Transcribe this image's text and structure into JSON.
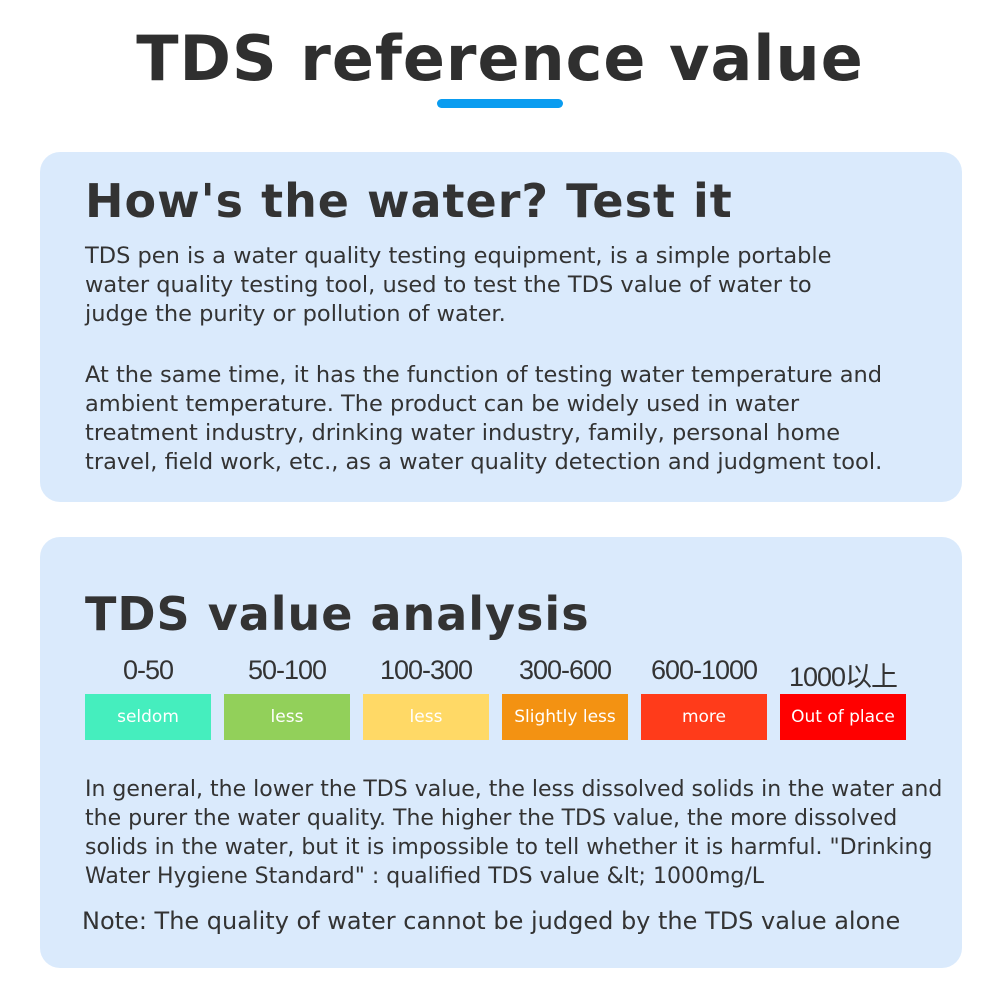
{
  "title": "TDS reference value",
  "accent": "#0a9cf0",
  "card1": {
    "heading": "How's the water? Test it",
    "p1": "TDS pen is a water quality testing equipment, is a simple portable\nwater quality testing tool, used to test the TDS value of water to\njudge the purity or pollution of water.",
    "p2": "At the same time, it has the function of testing water temperature and\nambient temperature. The product can be widely used in water\ntreatment industry, drinking water industry, family, personal home\ntravel, field work, etc., as a water quality detection and judgment tool."
  },
  "card2": {
    "heading": "TDS value analysis",
    "scale": [
      {
        "range": "0-50",
        "label": "seldom",
        "color": "#45eebe"
      },
      {
        "range": "50-100",
        "label": "less",
        "color": "#92d05a"
      },
      {
        "range": "100-300",
        "label": "less",
        "color": "#ffd966"
      },
      {
        "range": "300-600",
        "label": "Slightly less",
        "color": "#f39212"
      },
      {
        "range": "600-1000",
        "label": "more",
        "color": "#ff3b1a"
      },
      {
        "range": "1000以上",
        "label": "Out of place",
        "color": "#ff0000"
      }
    ],
    "p": "In general, the lower the TDS value, the less dissolved solids in the water and\nthe purer the water quality. The higher the TDS value, the more dissolved\nsolids in the water, but it is impossible to tell whether it is harmful. \"Drinking\nWater Hygiene Standard\" : qualified TDS value &lt; 1000mg/L",
    "note": "Note: The quality of water cannot be judged by the TDS value alone"
  }
}
